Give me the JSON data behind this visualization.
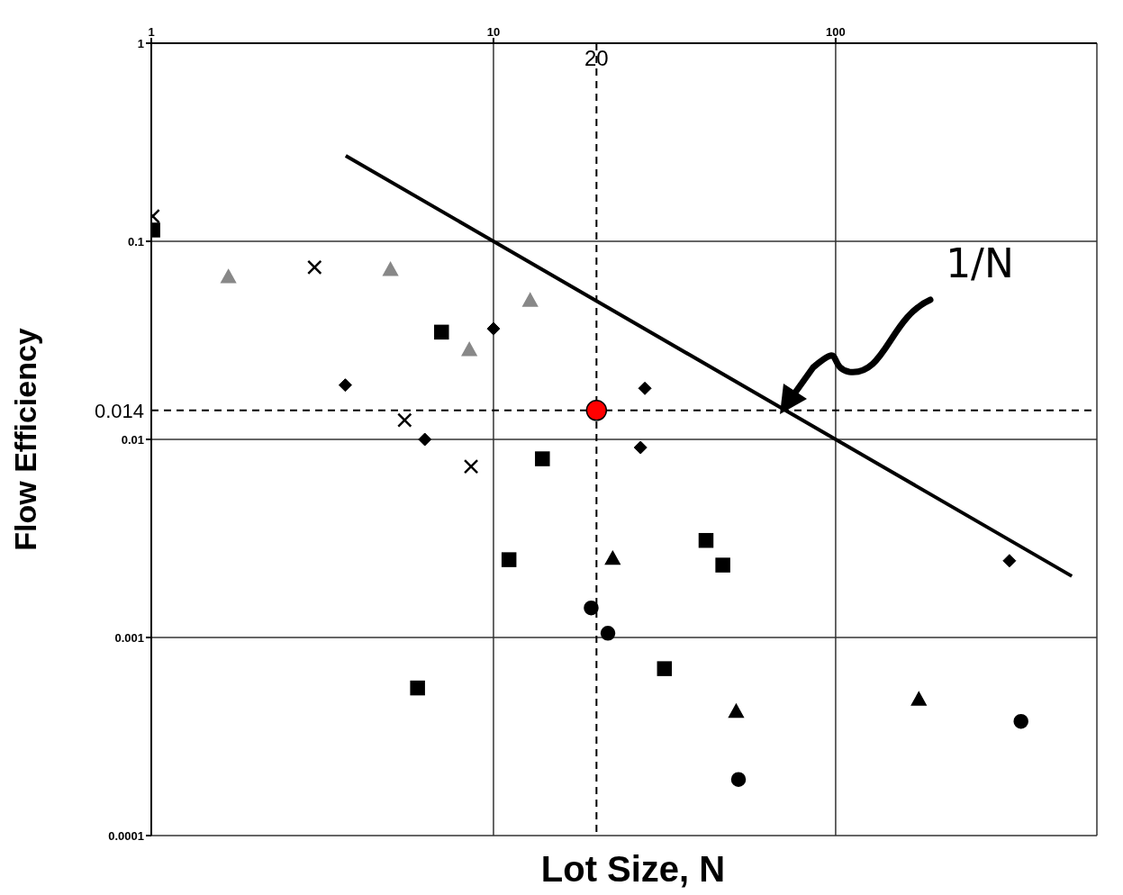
{
  "chart_data": {
    "type": "scatter",
    "xlabel": "Lot Size, N",
    "ylabel": "Flow Efficiency",
    "log": "xy",
    "grid": true,
    "xlim": [
      1,
      580
    ],
    "ylim": [
      0.0001,
      1
    ],
    "xticks": [
      1,
      10,
      100
    ],
    "yticks": [
      0.0001,
      0.001,
      0.01,
      0.1,
      1
    ],
    "series": [
      {
        "type": "line",
        "color": "#000000",
        "line_style": "solid",
        "marker": "none",
        "x": [
          3.7,
          10,
          100,
          490
        ],
        "values": [
          0.27,
          0.1,
          0.01,
          0.00204
        ]
      },
      {
        "color": "#000000",
        "marker": "diamond",
        "x": [
          3.69,
          6.3,
          10,
          27.7,
          26.9,
          322
        ],
        "values": [
          0.0188,
          0.01,
          0.0362,
          0.0181,
          0.0091,
          0.00244
        ]
      },
      {
        "color": "#000000",
        "marker": "square",
        "x": [
          1.01,
          7.05
        ],
        "values": [
          0.114,
          0.0348
        ]
      },
      {
        "color": "#000000",
        "marker": "cross",
        "x": [
          1.01,
          3.0,
          5.5,
          8.6
        ],
        "values": [
          0.134,
          0.074,
          0.0125,
          0.0073
        ]
      },
      {
        "color": "#888888",
        "marker": "triangle",
        "x": [
          1.68,
          5.0,
          8.5,
          12.8
        ],
        "values": [
          0.066,
          0.0718,
          0.0283,
          0.0502
        ]
      },
      {
        "color": "#000000",
        "marker": "square",
        "x": [
          13.9,
          11.1,
          6.0,
          41.8,
          46.8,
          31.6
        ],
        "values": [
          0.00798,
          0.00247,
          0.000556,
          0.00309,
          0.00232,
          0.000696
        ]
      },
      {
        "color": "#000000",
        "marker": "triangle",
        "x": [
          22.3,
          51.2,
          175
        ],
        "values": [
          0.0025,
          0.000422,
          0.000486
        ]
      },
      {
        "color": "#000000",
        "marker": "circle",
        "x": [
          19.3,
          21.6,
          52.0,
          348
        ],
        "values": [
          0.00141,
          0.00105,
          0.000192,
          0.000377
        ]
      },
      {
        "color": "#ff0000",
        "marker": "circle",
        "x": [
          20
        ],
        "values": [
          0.014
        ]
      }
    ],
    "ref_lines": [
      {
        "axis": "x",
        "value": 20,
        "label": "20",
        "line_style": "dashed",
        "color": "#000000"
      },
      {
        "axis": "y",
        "value": 0.014,
        "label": "0.014",
        "line_style": "dashed",
        "color": "#000000"
      }
    ],
    "annotations": [
      "1/N"
    ]
  }
}
